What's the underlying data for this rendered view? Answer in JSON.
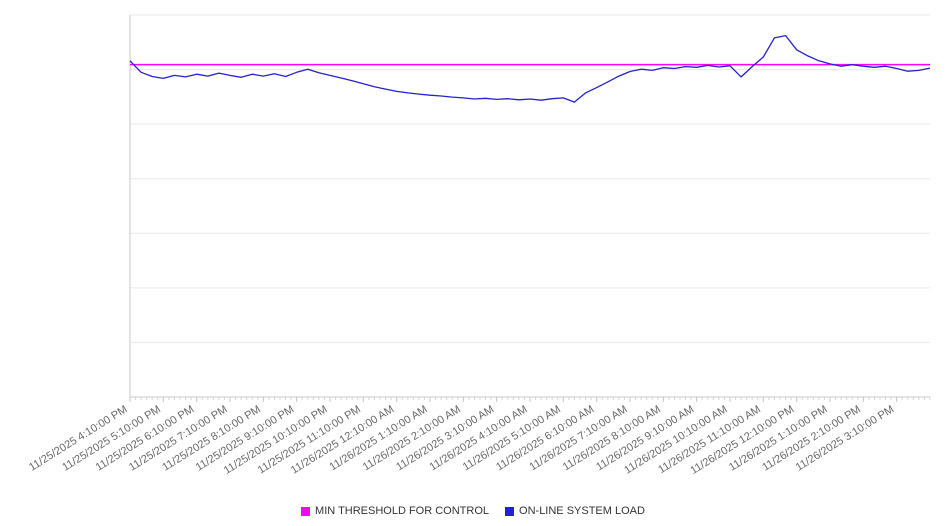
{
  "chart_data": {
    "type": "line",
    "title": "",
    "x_labels": [
      "11/25/2025 4:10:00 PM",
      "11/25/2025 5:10:00 PM",
      "11/25/2025 6:10:00 PM",
      "11/25/2025 7:10:00 PM",
      "11/25/2025 8:10:00 PM",
      "11/25/2025 9:10:00 PM",
      "11/25/2025 10:10:00 PM",
      "11/25/2025 11:10:00 PM",
      "11/26/2025 12:10:00 AM",
      "11/26/2025 1:10:00 AM",
      "11/26/2025 2:10:00 AM",
      "11/26/2025 3:10:00 AM",
      "11/26/2025 4:10:00 AM",
      "11/26/2025 5:10:00 AM",
      "11/26/2025 6:10:00 AM",
      "11/26/2025 7:10:00 AM",
      "11/26/2025 8:10:00 AM",
      "11/26/2025 9:10:00 AM",
      "11/26/2025 10:10:00 AM",
      "11/26/2025 11:10:00 AM",
      "11/26/2025 12:10:00 PM",
      "11/26/2025 1:10:00 PM",
      "11/26/2025 2:10:00 PM",
      "11/26/2025 3:10:00 PM"
    ],
    "y_axis": {
      "range": [
        0,
        100
      ],
      "gridline_divisions": 7,
      "tick_labels_visible": false,
      "units": "relative (no y-axis tick labels shown in chart)"
    },
    "legend_position": "bottom",
    "series": [
      {
        "name": "MIN THRESHOLD FOR CONTROL",
        "color": "#ff00ff",
        "style": "horizontal-line",
        "value": 87
      },
      {
        "name": "ON-LINE SYSTEM LOAD",
        "color": "#2222cc",
        "style": "line",
        "sample_interval_minutes": 20,
        "values": [
          88.0,
          85.0,
          83.9,
          83.4,
          84.2,
          83.8,
          84.5,
          84.0,
          84.8,
          84.2,
          83.7,
          84.5,
          84.0,
          84.6,
          83.9,
          85.0,
          85.8,
          84.9,
          84.2,
          83.5,
          82.8,
          82.0,
          81.2,
          80.6,
          80.0,
          79.6,
          79.3,
          79.0,
          78.8,
          78.5,
          78.3,
          78.0,
          78.2,
          77.9,
          78.1,
          77.8,
          78.0,
          77.7,
          78.1,
          78.3,
          77.2,
          79.6,
          81.0,
          82.5,
          84.0,
          85.2,
          85.8,
          85.5,
          86.2,
          86.0,
          86.5,
          86.3,
          86.8,
          86.4,
          86.7,
          83.8,
          86.5,
          89.0,
          94.0,
          94.6,
          90.9,
          89.3,
          88.0,
          87.2,
          86.6,
          87.0,
          86.6,
          86.3,
          86.6,
          86.0,
          85.3,
          85.5,
          86.1
        ]
      }
    ]
  },
  "colors": {
    "gridline": "#e9e9e9",
    "axis": "#c9c9c9",
    "tick": "#d5d5d5",
    "label_text": "#666666",
    "legend_text": "#333333"
  }
}
